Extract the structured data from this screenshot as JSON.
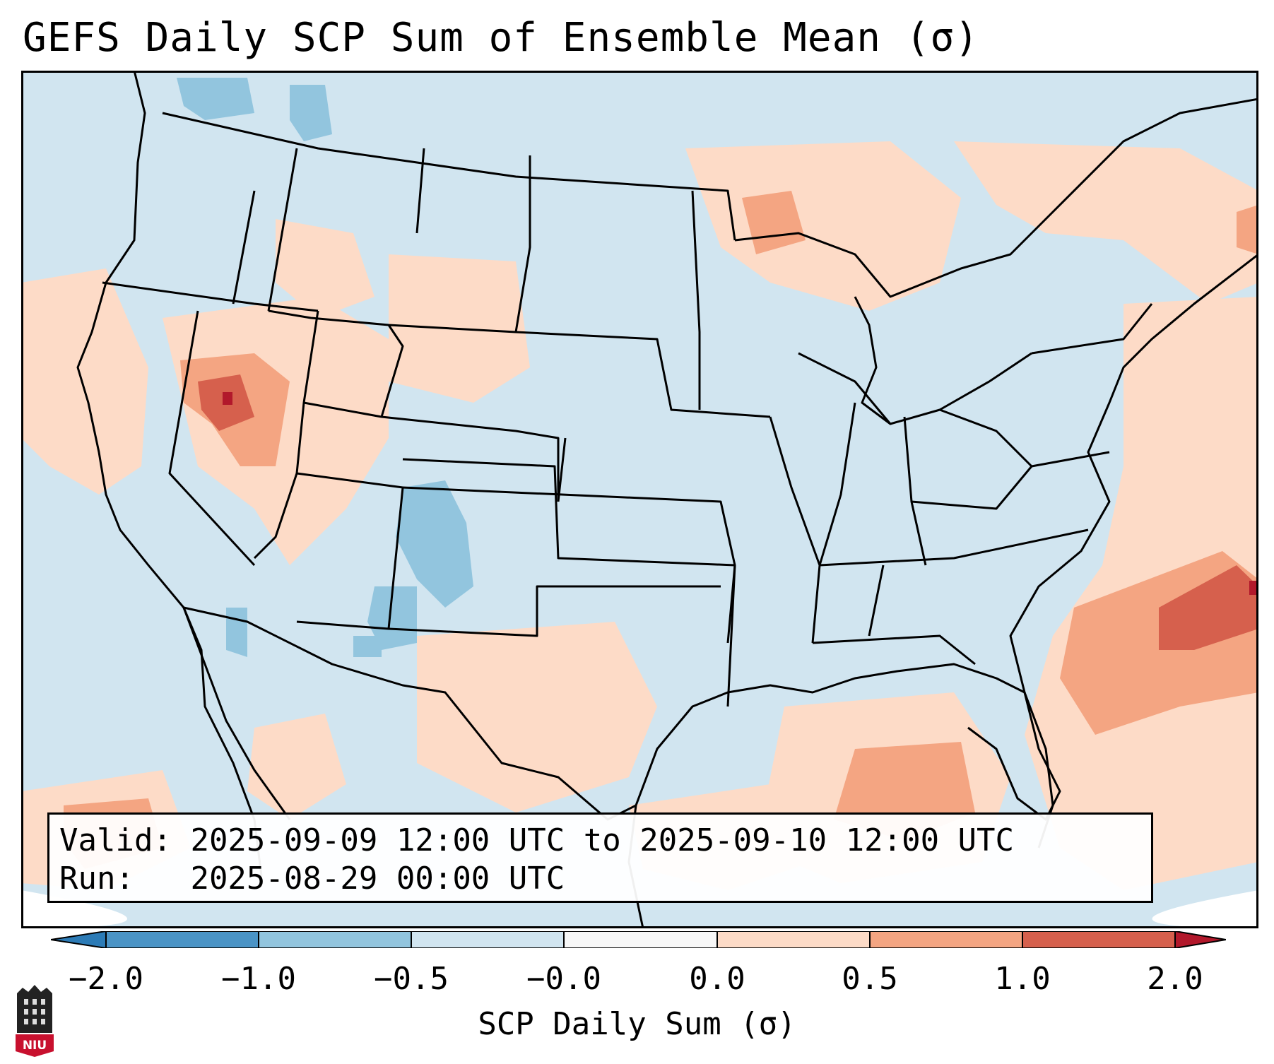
{
  "title": "GEFS Daily SCP Sum of Ensemble Mean (σ)",
  "info": {
    "valid_label": "Valid:",
    "valid_value": "2025-09-09 12:00 UTC to 2025-09-10 12:00 UTC",
    "run_label": "Run:",
    "run_value": "2025-08-29 00:00 UTC"
  },
  "colorbar": {
    "label": "SCP Daily Sum (σ)",
    "ticks": [
      "−2.0",
      "−1.0",
      "−0.5",
      "−0.0",
      "0.0",
      "0.5",
      "1.0",
      "2.0"
    ],
    "colors": {
      "extend_low": "#2c7bb6",
      "b1": "#4b94c6",
      "b2": "#92c5de",
      "b3": "#d1e5f0",
      "b4": "#f7f7f7",
      "b5": "#fddbc7",
      "b6": "#f4a582",
      "b7": "#d6604d",
      "extend_high": "#b2182b"
    }
  },
  "map": {
    "background_color": "#d1e5f0",
    "land_border_color": "#000000"
  },
  "logo": {
    "text": "NIU"
  }
}
